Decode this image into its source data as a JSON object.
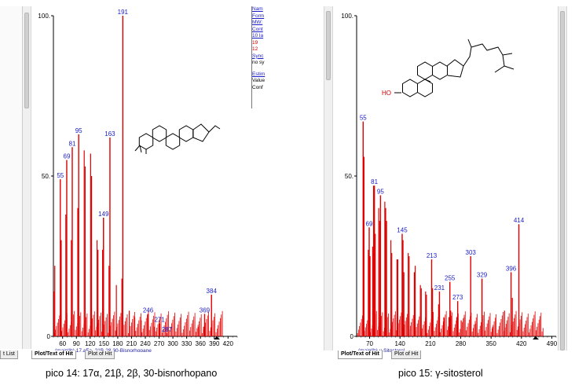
{
  "left_panel": {
    "list_tab": "t List",
    "tabs": [
      "Plot/Text of Hit",
      "Plot of Hit"
    ],
    "library_label": "(mainlib) 17.aFa ,21B-28,30-Bisnorhopane",
    "side_info": [
      "Nam",
      "Form",
      "MW:",
      "Cont",
      "10 la",
      "19",
      "12",
      "Sync",
      "no sy",
      "Estim",
      "Value",
      "Conf"
    ],
    "caption": "pico 14: 17α, 21β, 2β, 30-bisnorhopano"
  },
  "right_panel": {
    "tabs": [
      "Plot/Text of Hit",
      "Plot of Hit"
    ],
    "library_label": "(mainlib) γ-Sitosterol",
    "ho_label": "HO",
    "caption": "pico 15: γ-sitosterol"
  },
  "chart_data": [
    {
      "type": "bar",
      "title": "",
      "xlabel": "",
      "ylabel": "",
      "xlim": [
        40,
        440
      ],
      "ylim": [
        0,
        100
      ],
      "x_ticks": [
        "60",
        "90",
        "120",
        "150",
        "180",
        "210",
        "240",
        "270",
        "300",
        "330",
        "360",
        "390",
        "420"
      ],
      "y_ticks": [
        "0",
        "50",
        "100"
      ],
      "labeled_peaks": [
        {
          "mz": 55,
          "intensity": 49
        },
        {
          "mz": 69,
          "intensity": 55
        },
        {
          "mz": 81,
          "intensity": 59
        },
        {
          "mz": 95,
          "intensity": 63
        },
        {
          "mz": 149,
          "intensity": 37
        },
        {
          "mz": 163,
          "intensity": 62
        },
        {
          "mz": 191,
          "intensity": 100
        },
        {
          "mz": 246,
          "intensity": 7
        },
        {
          "mz": 271,
          "intensity": 4
        },
        {
          "mz": 287,
          "intensity": 1
        },
        {
          "mz": 369,
          "intensity": 7
        },
        {
          "mz": 384,
          "intensity": 13
        }
      ],
      "other_peaks": [
        [
          41,
          14
        ],
        [
          43,
          22
        ],
        [
          57,
          30
        ],
        [
          67,
          38
        ],
        [
          79,
          30
        ],
        [
          93,
          40
        ],
        [
          107,
          58
        ],
        [
          109,
          53
        ],
        [
          121,
          57
        ],
        [
          123,
          50
        ],
        [
          135,
          30
        ],
        [
          137,
          27
        ],
        [
          147,
          27
        ],
        [
          149,
          37
        ],
        [
          161,
          22
        ],
        [
          177,
          16
        ],
        [
          189,
          18
        ],
        [
          205,
          8
        ],
        [
          217,
          6
        ],
        [
          231,
          5
        ],
        [
          259,
          3
        ],
        [
          355,
          3
        ],
        [
          367,
          3
        ]
      ]
    },
    {
      "type": "bar",
      "title": "",
      "xlabel": "",
      "ylabel": "",
      "xlim": [
        40,
        500
      ],
      "ylim": [
        0,
        100
      ],
      "x_ticks": [
        "70",
        "140",
        "210",
        "280",
        "350",
        "420",
        "490"
      ],
      "y_ticks": [
        "0",
        "50",
        "100"
      ],
      "labeled_peaks": [
        {
          "mz": 55,
          "intensity": 67
        },
        {
          "mz": 69,
          "intensity": 34
        },
        {
          "mz": 81,
          "intensity": 47
        },
        {
          "mz": 95,
          "intensity": 44
        },
        {
          "mz": 145,
          "intensity": 32
        },
        {
          "mz": 213,
          "intensity": 24
        },
        {
          "mz": 231,
          "intensity": 14
        },
        {
          "mz": 255,
          "intensity": 17
        },
        {
          "mz": 273,
          "intensity": 11
        },
        {
          "mz": 303,
          "intensity": 25
        },
        {
          "mz": 329,
          "intensity": 18
        },
        {
          "mz": 396,
          "intensity": 20
        },
        {
          "mz": 414,
          "intensity": 35
        }
      ],
      "other_peaks": [
        [
          57,
          56
        ],
        [
          67,
          27
        ],
        [
          71,
          25
        ],
        [
          77,
          28
        ],
        [
          79,
          47
        ],
        [
          83,
          32
        ],
        [
          91,
          40
        ],
        [
          93,
          36
        ],
        [
          105,
          42
        ],
        [
          107,
          40
        ],
        [
          109,
          36
        ],
        [
          119,
          30
        ],
        [
          121,
          26
        ],
        [
          133,
          24
        ],
        [
          135,
          24
        ],
        [
          147,
          30
        ],
        [
          149,
          20
        ],
        [
          159,
          26
        ],
        [
          161,
          25
        ],
        [
          173,
          20
        ],
        [
          175,
          22
        ],
        [
          187,
          16
        ],
        [
          189,
          15
        ],
        [
          199,
          14
        ],
        [
          201,
          13
        ],
        [
          215,
          15
        ],
        [
          229,
          10
        ],
        [
          241,
          6
        ],
        [
          253,
          6
        ],
        [
          257,
          8
        ],
        [
          271,
          6
        ],
        [
          281,
          5
        ],
        [
          288,
          6
        ],
        [
          315,
          4
        ],
        [
          329,
          18
        ],
        [
          354,
          3
        ],
        [
          381,
          8
        ],
        [
          399,
          12
        ]
      ]
    }
  ]
}
